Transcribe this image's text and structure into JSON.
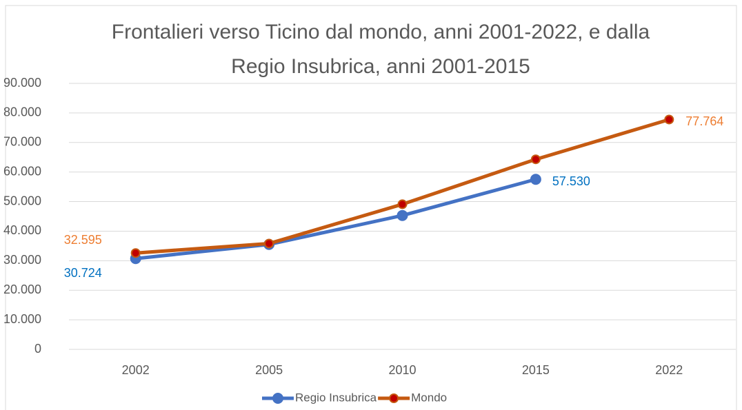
{
  "chart_data": {
    "type": "line",
    "title": "Frontalieri verso Ticino dal mondo, anni 2001-2022, e dalla Regio Insubrica, anni 2001-2015",
    "categories": [
      "2002",
      "2005",
      "2010",
      "2015",
      "2022"
    ],
    "series": [
      {
        "name": "Regio Insubrica",
        "color": "#4472c4",
        "marker_color": "#4472c4",
        "label_color": "#0070c0",
        "values": [
          30724,
          35500,
          45300,
          57530,
          null
        ],
        "value_labels": [
          "30.724",
          null,
          null,
          "57.530",
          null
        ]
      },
      {
        "name": "Mondo",
        "color": "#c55a11",
        "marker_color": "#c00000",
        "label_color": "#ed7d31",
        "values": [
          32595,
          35800,
          49100,
          64300,
          77764
        ],
        "value_labels": [
          "32.595",
          null,
          null,
          null,
          "77.764"
        ]
      }
    ],
    "ylim": [
      0,
      90000
    ],
    "yticks": [
      0,
      {
        "value": 10000,
        "label": "10.000"
      },
      {
        "value": 20000,
        "label": "20.000"
      },
      {
        "value": 30000,
        "label": "30.000"
      },
      {
        "value": 40000,
        "label": "40.000"
      },
      {
        "value": 50000,
        "label": "50.000"
      },
      {
        "value": 60000,
        "label": "60.000"
      },
      {
        "value": 70000,
        "label": "70.000"
      },
      {
        "value": 80000,
        "label": "80.000"
      },
      {
        "value": 90000,
        "label": "90.000"
      }
    ],
    "grid": true,
    "legend": "bottom"
  }
}
